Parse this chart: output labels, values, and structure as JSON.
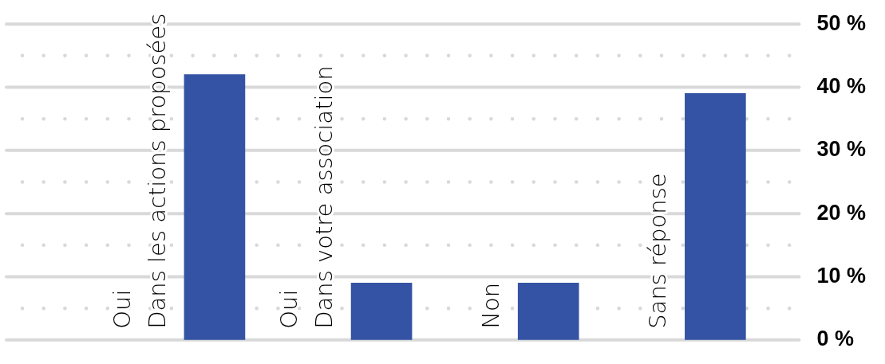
{
  "chart_data": {
    "type": "bar",
    "categories": [
      "Oui\nDans les actions proposées",
      "Oui\nDans votre association",
      "Non",
      "Sans réponse"
    ],
    "values": [
      42,
      9,
      9,
      39
    ],
    "color": "#3553a4",
    "ylim": [
      0,
      50
    ],
    "yticks": [
      {
        "value": 0,
        "label": "0 %"
      },
      {
        "value": 5,
        "label": null
      },
      {
        "value": 10,
        "label": "10 %"
      },
      {
        "value": 15,
        "label": null
      },
      {
        "value": 20,
        "label": "20 %"
      },
      {
        "value": 25,
        "label": null
      },
      {
        "value": 30,
        "label": "30 %"
      },
      {
        "value": 35,
        "label": null
      },
      {
        "value": 40,
        "label": "40 %"
      },
      {
        "value": 45,
        "label": null
      },
      {
        "value": 50,
        "label": "50 %"
      }
    ],
    "grid": "y"
  }
}
